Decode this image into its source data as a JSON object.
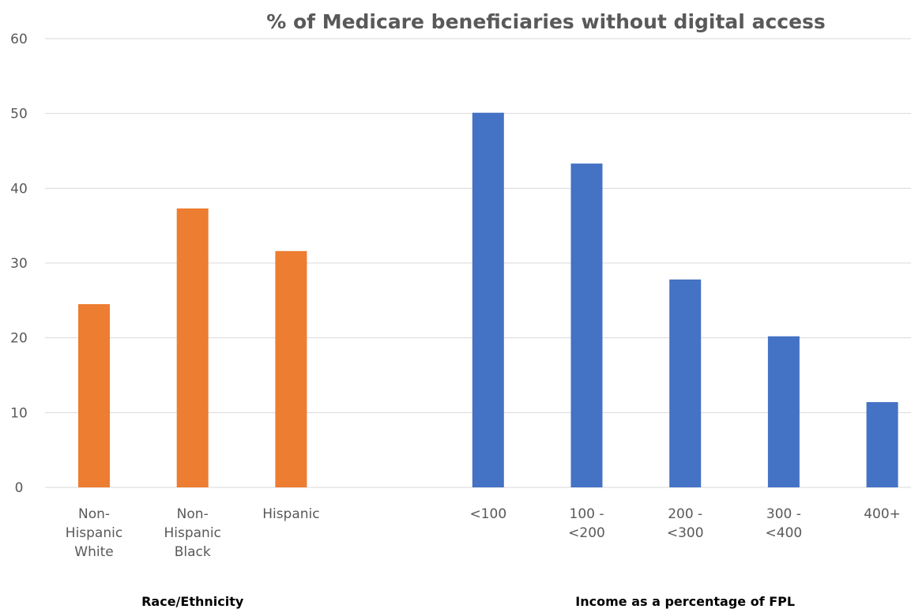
{
  "chart_data": {
    "type": "bar",
    "title": "% of Medicare beneficiaries without digital access",
    "xlabel": "",
    "ylabel": "",
    "ylim": [
      0,
      60
    ],
    "yticks": [
      "0",
      "10",
      "20",
      "30",
      "40",
      "50",
      "60"
    ],
    "grid": true,
    "legend": "none",
    "groups": [
      {
        "name": "Race/Ethnicity",
        "color": "#ED7D31",
        "categories": [
          [
            "Non-",
            "Hispanic",
            "White"
          ],
          [
            "Non-",
            "Hispanic",
            "Black"
          ],
          [
            "Hispanic"
          ]
        ],
        "values": [
          24.5,
          37.3,
          31.6
        ]
      },
      {
        "name": "Income as a percentage of FPL",
        "color": "#4472C4",
        "categories": [
          [
            "<100"
          ],
          [
            "100 -",
            "<200"
          ],
          [
            "200 -",
            "<300"
          ],
          [
            "300 -",
            "<400"
          ],
          [
            "400+"
          ]
        ],
        "values": [
          50.1,
          43.3,
          27.8,
          20.2,
          11.4
        ]
      }
    ]
  }
}
